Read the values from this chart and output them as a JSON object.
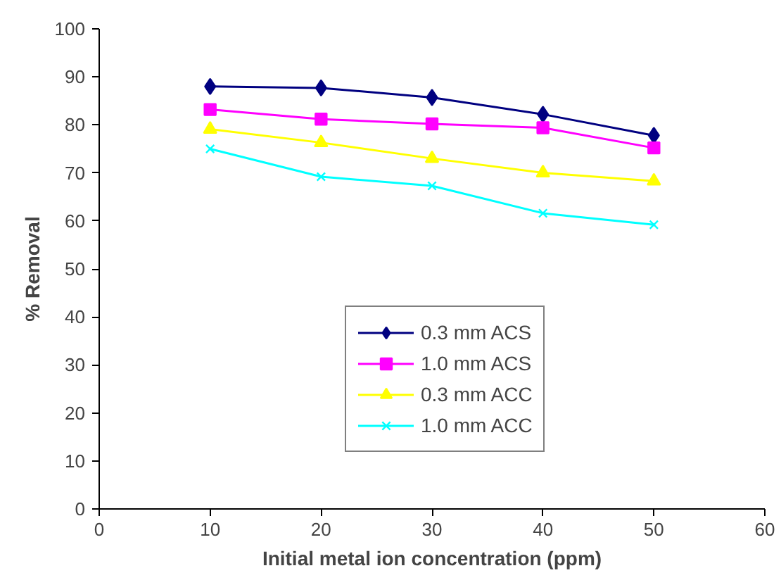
{
  "chart_data": {
    "type": "line",
    "xlabel": "Initial metal ion concentration (ppm)",
    "ylabel": "% Removal",
    "x": [
      10,
      20,
      30,
      40,
      50
    ],
    "series": [
      {
        "name": "0.3 mm ACS",
        "color": "#000080",
        "marker": "diamond",
        "values": [
          88,
          87.7,
          85.7,
          82.2,
          77.8
        ]
      },
      {
        "name": "1.0 mm ACS",
        "color": "#ff00ff",
        "marker": "square",
        "values": [
          83.2,
          81.2,
          80.2,
          79.4,
          75.2
        ]
      },
      {
        "name": "0.3 mm ACC",
        "color": "#ffff00",
        "marker": "triangle",
        "values": [
          79.1,
          76.3,
          73,
          70,
          68.3
        ]
      },
      {
        "name": "1.0 mm ACC",
        "color": "#00ffff",
        "marker": "cross",
        "values": [
          75,
          69.2,
          67.3,
          61.6,
          59.2
        ]
      }
    ],
    "xlim": [
      0,
      60
    ],
    "xticks": [
      0,
      10,
      20,
      30,
      40,
      50,
      60
    ],
    "ylim": [
      0,
      100
    ],
    "yticks": [
      0,
      10,
      20,
      30,
      40,
      50,
      60,
      70,
      80,
      90,
      100
    ],
    "grid": false,
    "legend": "center",
    "line_style": "solid"
  }
}
